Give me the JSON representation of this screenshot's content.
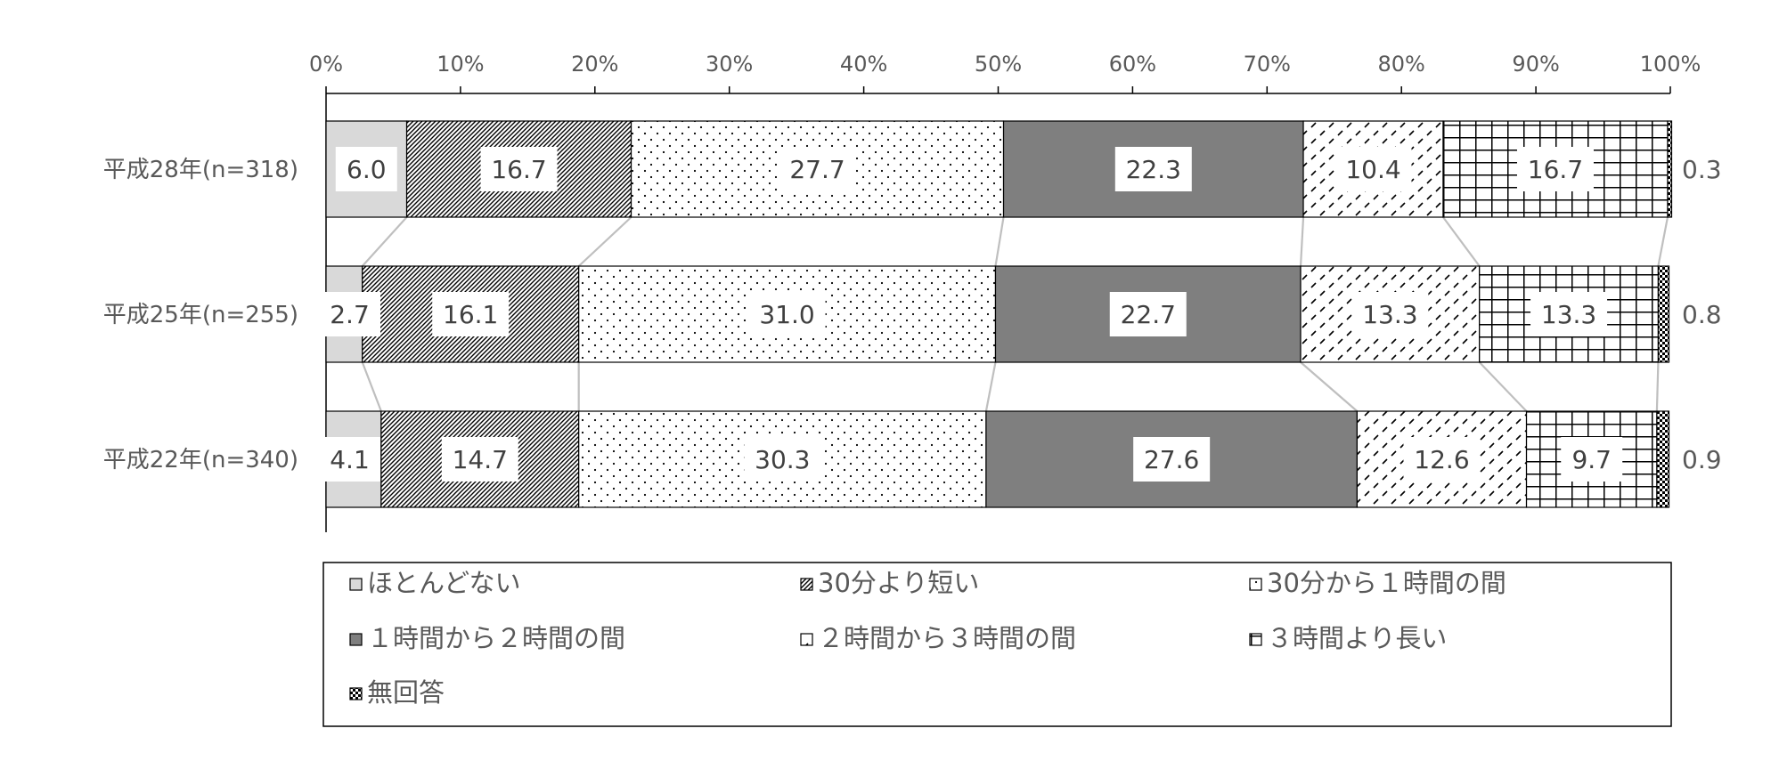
{
  "chart_data": {
    "type": "bar",
    "orientation": "horizontal",
    "stacked": "percent",
    "categories": [
      "平成28年(n=318)",
      "平成25年(n=255)",
      "平成22年(n=340)"
    ],
    "xlim": [
      0,
      100
    ],
    "xticks": [
      "0%",
      "10%",
      "20%",
      "30%",
      "40%",
      "50%",
      "60%",
      "70%",
      "80%",
      "90%",
      "100%"
    ],
    "grid": false,
    "series_lines": true,
    "legend_position": "bottom",
    "series": [
      {
        "name": "ほとんどない",
        "values": [
          6.0,
          2.7,
          4.1
        ],
        "labels": [
          "6.0",
          "2.7",
          "4.1"
        ],
        "pattern": "solid-light",
        "color": "#d9d9d9"
      },
      {
        "name": "30分より短い",
        "values": [
          16.7,
          16.1,
          14.7
        ],
        "labels": [
          "16.7",
          "16.1",
          "14.7"
        ],
        "pattern": "diagonal-dense",
        "color": "#000000"
      },
      {
        "name": "30分から１時間の間",
        "values": [
          27.7,
          31.0,
          30.3
        ],
        "labels": [
          "27.7",
          "31.0",
          "30.3"
        ],
        "pattern": "dots",
        "color": "#000000"
      },
      {
        "name": "１時間から２時間の間",
        "values": [
          22.3,
          22.7,
          27.6
        ],
        "labels": [
          "22.3",
          "22.7",
          "27.6"
        ],
        "pattern": "solid-dark",
        "color": "#7f7f7f"
      },
      {
        "name": "２時間から３時間の間",
        "values": [
          10.4,
          13.3,
          12.6
        ],
        "labels": [
          "10.4",
          "13.3",
          "12.6"
        ],
        "pattern": "dashes",
        "color": "#000000"
      },
      {
        "name": "３時間より長い",
        "values": [
          16.7,
          13.3,
          9.7
        ],
        "labels": [
          "16.7",
          "13.3",
          "9.7"
        ],
        "pattern": "grid",
        "color": "#000000"
      },
      {
        "name": "無回答",
        "values": [
          0.3,
          0.8,
          0.9
        ],
        "labels": [
          "0.3",
          "0.8",
          "0.9"
        ],
        "pattern": "checker",
        "color": "#000000"
      }
    ]
  }
}
